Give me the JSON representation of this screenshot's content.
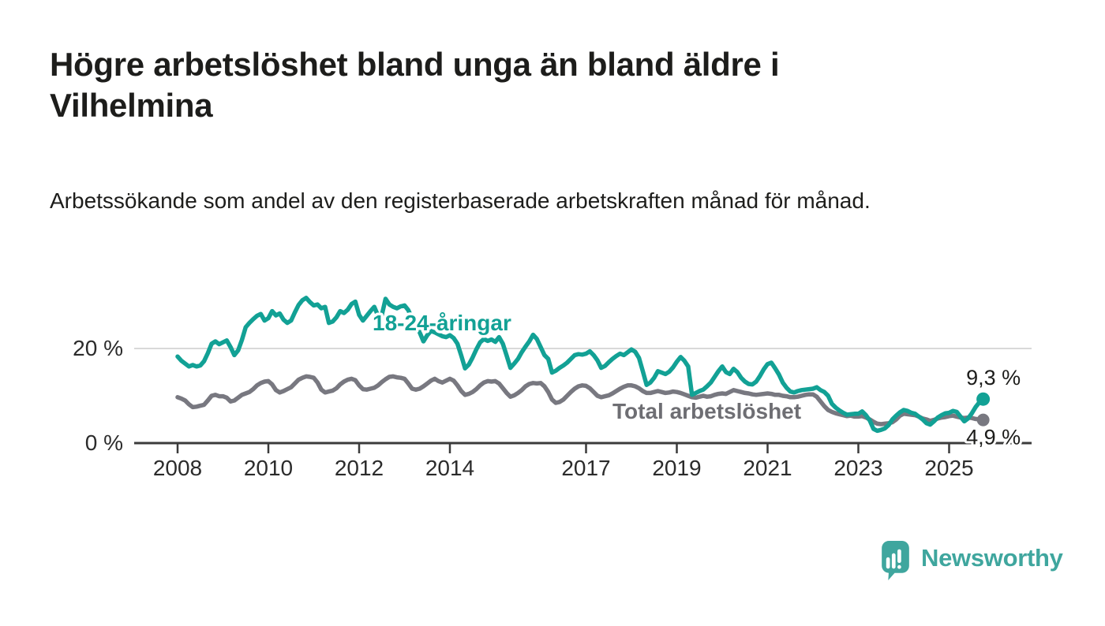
{
  "header": {
    "title": "Högre arbetslöshet bland unga än bland äldre i Vilhelmina",
    "subtitle": "Arbetssökande som andel av den registerbaserade arbetskraften månad för månad."
  },
  "footer": {
    "brand": "Newsworthy",
    "brand_color": "#3fa69e",
    "logo_icon": "speech-bubble-bar-chart-icon"
  },
  "chart_data": {
    "type": "line",
    "unit": "percent",
    "frequency": "monthly",
    "x_start": "2008-01",
    "x_end": "2025-10",
    "grid": "horizontal-gridline-at-20-only",
    "colors": {
      "axis": "#3b3b3b",
      "grid": "#d9d9d9",
      "tick_text": "#2b2b2b",
      "value_label": "#1d1d1b"
    },
    "x_axis": {
      "tick_labels": [
        "2008",
        "2010",
        "2012",
        "2014",
        "2017",
        "2019",
        "2021",
        "2023",
        "2025"
      ],
      "tick_years": [
        2008,
        2010,
        2012,
        2014,
        2017,
        2019,
        2021,
        2023,
        2025
      ]
    },
    "y_axis": {
      "tick_labels": [
        "0 %",
        "20 %"
      ],
      "tick_values": [
        0,
        20
      ],
      "range": [
        0,
        33
      ]
    },
    "series": [
      {
        "name": "18-24-åringar",
        "color": "#12a195",
        "label_color": "#12a195",
        "end_label": "9,3 %",
        "end_value": 9.3,
        "values": [
          18.3,
          17.4,
          16.8,
          16.2,
          16.5,
          16.2,
          16.4,
          17.3,
          19.0,
          21.0,
          21.5,
          20.9,
          21.3,
          21.7,
          20.3,
          18.6,
          19.6,
          21.8,
          24.5,
          25.4,
          26.2,
          26.9,
          27.3,
          25.9,
          26.4,
          27.9,
          27.0,
          27.4,
          26.1,
          25.4,
          25.9,
          27.6,
          29.2,
          30.2,
          30.7,
          29.8,
          29.1,
          29.3,
          28.5,
          28.8,
          25.4,
          25.7,
          26.6,
          27.9,
          27.5,
          28.2,
          29.4,
          29.9,
          27.1,
          25.9,
          26.9,
          27.9,
          28.8,
          26.9,
          27.1,
          30.5,
          29.3,
          28.8,
          28.5,
          28.9,
          29.1,
          28.1,
          26.4,
          25.7,
          23.4,
          21.5,
          22.8,
          23.7,
          23.4,
          23.0,
          22.6,
          22.4,
          22.8,
          22.2,
          21.0,
          18.5,
          15.8,
          16.6,
          18.1,
          19.8,
          21.3,
          22.0,
          21.6,
          21.9,
          21.4,
          22.4,
          21.0,
          18.5,
          15.9,
          16.8,
          17.8,
          19.2,
          20.4,
          21.5,
          22.9,
          22.0,
          20.3,
          18.6,
          17.8,
          14.9,
          15.3,
          15.9,
          16.4,
          17.0,
          17.8,
          18.6,
          18.8,
          18.7,
          18.9,
          19.4,
          18.6,
          17.5,
          15.9,
          16.3,
          17.1,
          17.8,
          18.4,
          18.9,
          18.6,
          19.2,
          19.8,
          19.3,
          18.0,
          15.2,
          12.3,
          12.8,
          13.8,
          15.2,
          14.9,
          14.6,
          15.1,
          16.0,
          17.2,
          18.2,
          17.4,
          16.2,
          10.2,
          10.6,
          11.0,
          11.3,
          12.0,
          12.8,
          14.0,
          15.2,
          16.2,
          15.0,
          14.6,
          15.7,
          15.0,
          13.8,
          13.0,
          12.5,
          12.4,
          13.0,
          14.2,
          15.6,
          16.7,
          17.0,
          15.8,
          14.5,
          12.8,
          11.7,
          10.9,
          10.7,
          11.0,
          11.2,
          11.3,
          11.4,
          11.5,
          11.8,
          11.2,
          10.8,
          10.0,
          8.3,
          7.5,
          6.9,
          6.4,
          6.0,
          6.1,
          6.2,
          6.2,
          6.7,
          5.9,
          4.8,
          3.0,
          2.6,
          2.8,
          3.1,
          3.8,
          5.0,
          5.8,
          6.5,
          7.0,
          6.8,
          6.4,
          6.2,
          5.6,
          5.0,
          4.2,
          3.9,
          4.6,
          5.4,
          5.9,
          6.3,
          6.4,
          6.8,
          6.6,
          5.6,
          4.6,
          5.2,
          6.3,
          7.6,
          8.6,
          9.3
        ]
      },
      {
        "name": "Total arbetslöshet",
        "color": "#787880",
        "label_color": "#6e6e73",
        "end_label": "4,9 %",
        "end_value": 4.9,
        "values": [
          9.7,
          9.4,
          9.0,
          8.2,
          7.6,
          7.7,
          7.9,
          8.1,
          9.0,
          10.0,
          10.2,
          9.9,
          9.9,
          9.6,
          8.8,
          9.0,
          9.6,
          10.2,
          10.5,
          10.8,
          11.4,
          12.2,
          12.7,
          13.0,
          13.1,
          12.4,
          11.2,
          10.7,
          11.0,
          11.4,
          11.8,
          12.6,
          13.4,
          13.8,
          14.1,
          14.0,
          13.8,
          12.8,
          11.3,
          10.7,
          10.9,
          11.1,
          11.6,
          12.4,
          13.0,
          13.4,
          13.6,
          13.3,
          12.2,
          11.4,
          11.3,
          11.5,
          11.7,
          12.2,
          12.9,
          13.5,
          14.0,
          14.1,
          13.9,
          13.8,
          13.6,
          12.6,
          11.5,
          11.3,
          11.5,
          12.0,
          12.6,
          13.2,
          13.6,
          13.1,
          12.8,
          13.2,
          13.6,
          13.2,
          12.2,
          11.0,
          10.2,
          10.4,
          10.8,
          11.4,
          12.2,
          12.8,
          13.1,
          13.0,
          13.1,
          12.6,
          11.6,
          10.6,
          9.8,
          10.1,
          10.6,
          11.2,
          12.0,
          12.5,
          12.7,
          12.6,
          12.7,
          12.0,
          10.8,
          9.2,
          8.5,
          8.7,
          9.2,
          10.0,
          10.8,
          11.5,
          12.0,
          12.2,
          12.1,
          11.6,
          10.8,
          10.0,
          9.7,
          9.9,
          10.1,
          10.5,
          11.0,
          11.5,
          11.9,
          12.2,
          12.2,
          12.0,
          11.6,
          11.0,
          10.6,
          10.6,
          10.8,
          11.0,
          10.8,
          10.6,
          10.7,
          10.9,
          10.8,
          10.6,
          10.3,
          10.0,
          9.7,
          9.6,
          9.8,
          10.0,
          9.8,
          9.9,
          10.2,
          10.4,
          10.5,
          10.4,
          10.8,
          11.2,
          11.0,
          10.8,
          10.6,
          10.5,
          10.3,
          10.2,
          10.3,
          10.4,
          10.5,
          10.4,
          10.2,
          10.2,
          10.0,
          9.9,
          9.7,
          9.7,
          9.8,
          10.0,
          10.2,
          10.3,
          10.3,
          9.8,
          8.8,
          7.8,
          7.0,
          6.6,
          6.3,
          6.1,
          5.9,
          5.7,
          5.8,
          5.6,
          5.6,
          5.7,
          5.4,
          5.0,
          4.5,
          4.1,
          4.0,
          4.1,
          4.2,
          4.4,
          5.0,
          5.8,
          6.2,
          6.1,
          6.0,
          5.9,
          5.6,
          5.2,
          5.0,
          4.7,
          4.9,
          5.2,
          5.4,
          5.5,
          5.7,
          5.8,
          5.6,
          5.4,
          5.3,
          5.4,
          5.3,
          5.1,
          5.0,
          4.9
        ]
      }
    ]
  }
}
